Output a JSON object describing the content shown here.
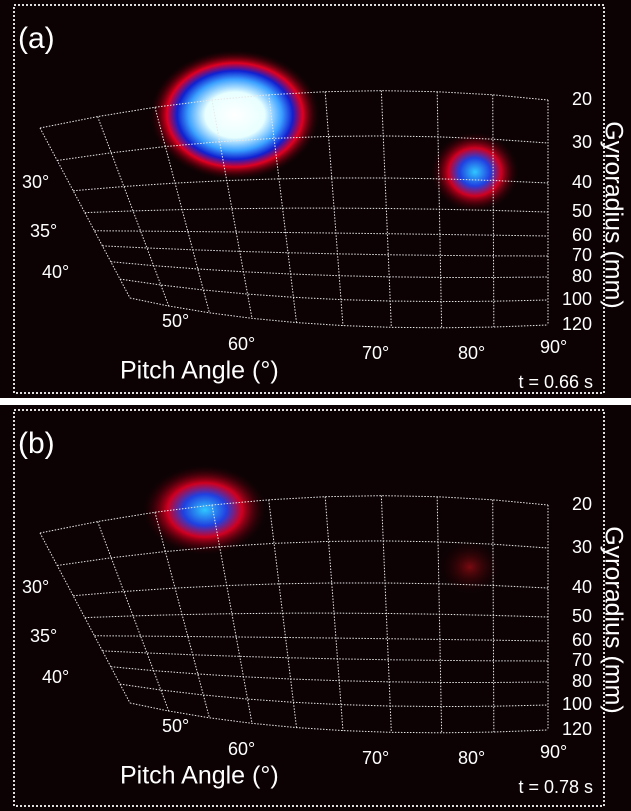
{
  "panels": [
    {
      "label": "(a)",
      "time": "t = 0.66 s",
      "x_label": "Pitch Angle (°)",
      "y_label": "Gyroradius (mm)",
      "gyroradius_ticks": [
        "20",
        "30",
        "40",
        "50",
        "60",
        "70",
        "80",
        "100",
        "120"
      ],
      "pitch_ticks": [
        "30°",
        "35°",
        "40°",
        "50°",
        "60°",
        "70°",
        "80°",
        "90°"
      ]
    },
    {
      "label": "(b)",
      "time": "t = 0.78 s",
      "x_label": "Pitch Angle (°)",
      "y_label": "Gyroradius (mm)",
      "gyroradius_ticks": [
        "20",
        "30",
        "40",
        "50",
        "60",
        "70",
        "80",
        "100",
        "120"
      ],
      "pitch_ticks": [
        "30°",
        "35°",
        "40°",
        "50°",
        "60°",
        "70°",
        "80°",
        "90°"
      ]
    }
  ]
}
